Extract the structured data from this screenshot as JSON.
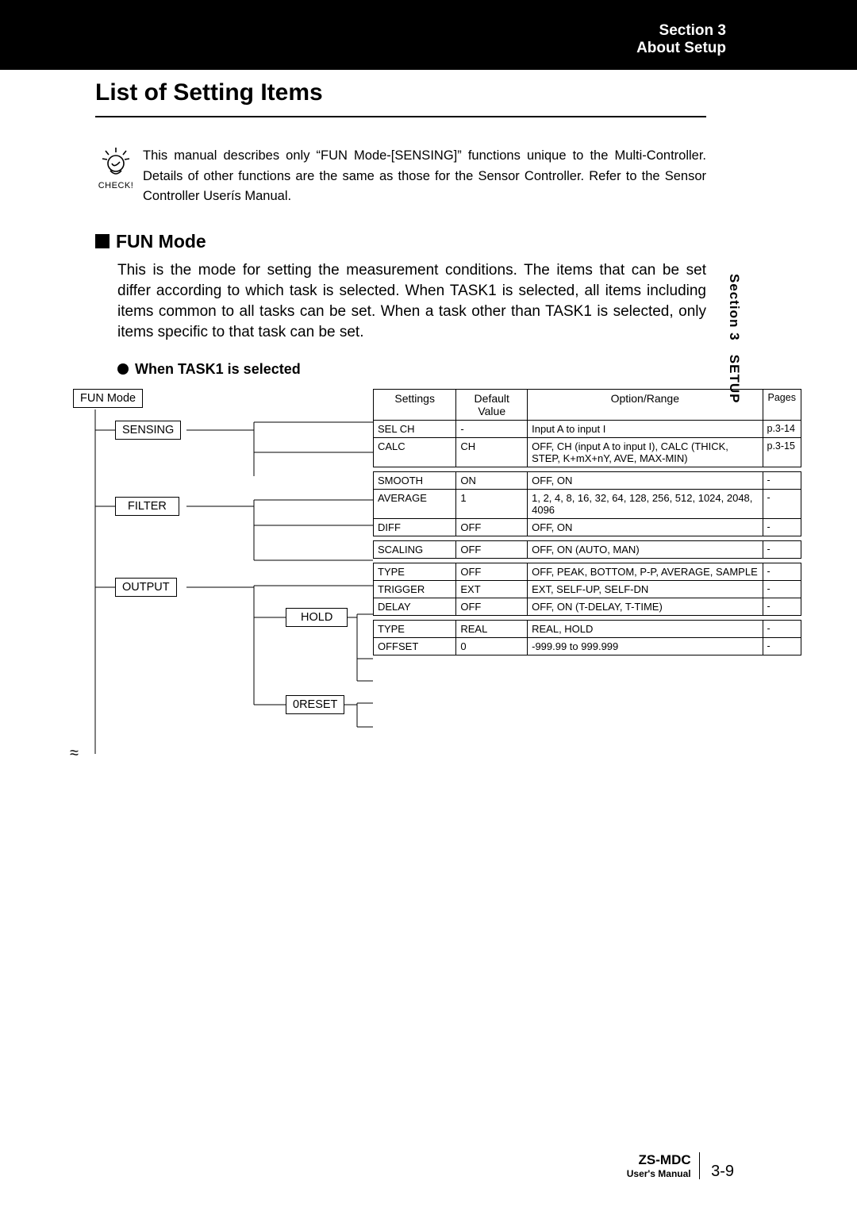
{
  "header": {
    "line1": "Section 3",
    "line2": "About Setup"
  },
  "title": "List of Setting Items",
  "check": {
    "label": "CHECK!",
    "text": "This manual describes only “FUN Mode-[SENSING]” functions unique to the Multi-Controller. Details of other functions are the same as those for the Sensor Controller. Refer to the Sensor Controller Userís Manual."
  },
  "section": {
    "h2": "FUN Mode",
    "para": "This is the mode for setting the measurement conditions. The items that can be set differ according to which task is selected. When TASK1 is selected, all items including items common to all tasks can be set. When a task other than TASK1 is selected, only items specific to that task can be set.",
    "h3": "When TASK1 is selected"
  },
  "tree": {
    "root": "FUN Mode",
    "n1": "SENSING",
    "n2": "FILTER",
    "n3": "OUTPUT",
    "s1": "HOLD",
    "s2": "0RESET"
  },
  "tableHeaders": {
    "c1": "Settings",
    "c2": "Default Value",
    "c3": "Option/Range",
    "c4": "Pages"
  },
  "groups": [
    {
      "rows": [
        {
          "s": "SEL CH",
          "d": "-",
          "o": "Input A to input I",
          "p": "p.3-14"
        },
        {
          "s": "CALC",
          "d": "CH",
          "o": "OFF, CH (input A to input I), CALC (THICK, STEP, K+mX+nY, AVE, MAX-MIN)",
          "p": "p.3-15"
        }
      ]
    },
    {
      "rows": [
        {
          "s": "SMOOTH",
          "d": "ON",
          "o": "OFF, ON",
          "p": "-"
        },
        {
          "s": "AVERAGE",
          "d": "1",
          "o": "1, 2, 4, 8, 16, 32, 64, 128, 256, 512, 1024, 2048, 4096",
          "p": "-"
        },
        {
          "s": "DIFF",
          "d": "OFF",
          "o": "OFF, ON",
          "p": "-"
        }
      ]
    },
    {
      "rows": [
        {
          "s": "SCALING",
          "d": "OFF",
          "o": "OFF, ON (AUTO, MAN)",
          "p": "-"
        }
      ]
    },
    {
      "rows": [
        {
          "s": "TYPE",
          "d": "OFF",
          "o": "OFF, PEAK, BOTTOM, P-P, AVERAGE, SAMPLE",
          "p": "-"
        },
        {
          "s": "TRIGGER",
          "d": "EXT",
          "o": "EXT, SELF-UP, SELF-DN",
          "p": "-"
        },
        {
          "s": "DELAY",
          "d": "OFF",
          "o": "OFF, ON (T-DELAY, T-TIME)",
          "p": "-"
        }
      ]
    },
    {
      "rows": [
        {
          "s": "TYPE",
          "d": "REAL",
          "o": "REAL, HOLD",
          "p": "-"
        },
        {
          "s": "OFFSET",
          "d": "0",
          "o": "-999.99 to 999.999",
          "p": "-"
        }
      ]
    }
  ],
  "sidebar": {
    "text1": "Section 3",
    "text2": "SETUP"
  },
  "footer": {
    "product": "ZS-MDC",
    "sub": "User's Manual",
    "page": "3-9"
  },
  "colors": {
    "black": "#000000",
    "white": "#ffffff"
  }
}
